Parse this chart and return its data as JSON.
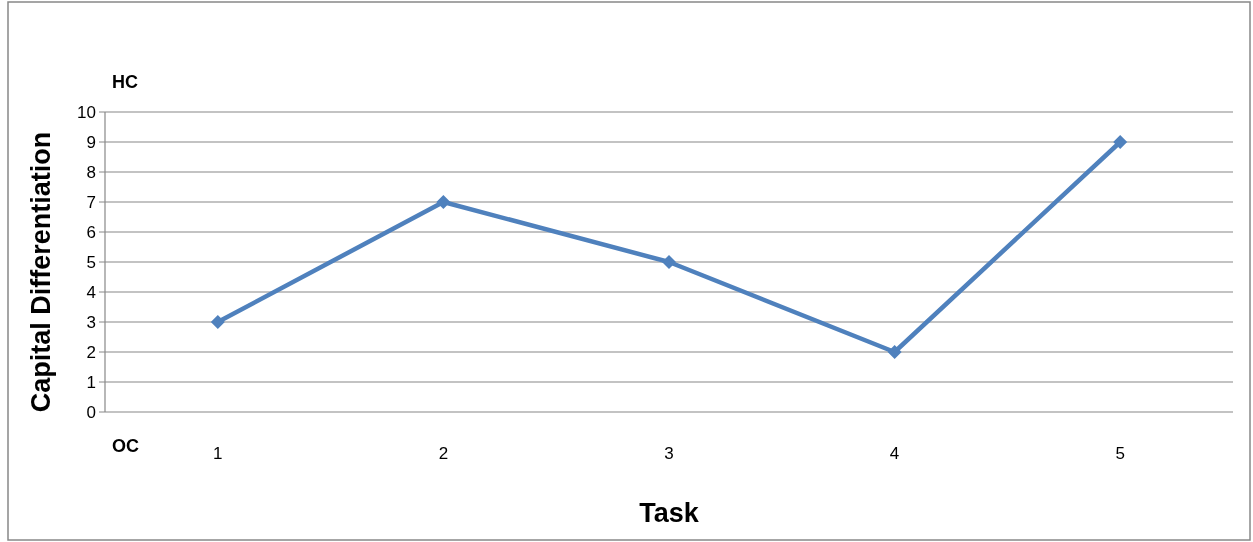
{
  "chart_data": {
    "type": "line",
    "xlabel": "Task",
    "ylabel": "Capital Differentiation",
    "annotations": [
      "HC",
      "OC"
    ],
    "categories": [
      "1",
      "2",
      "3",
      "4",
      "5"
    ],
    "series": [
      {
        "color": "#4f81bd",
        "values": [
          3,
          7,
          5,
          2,
          9
        ]
      }
    ],
    "ylim": [
      0,
      10
    ],
    "yticks": [
      0,
      1,
      2,
      3,
      4,
      5,
      6,
      7,
      8,
      9,
      10
    ],
    "grid": "y",
    "marker": "diamond",
    "line_style": "solid"
  }
}
